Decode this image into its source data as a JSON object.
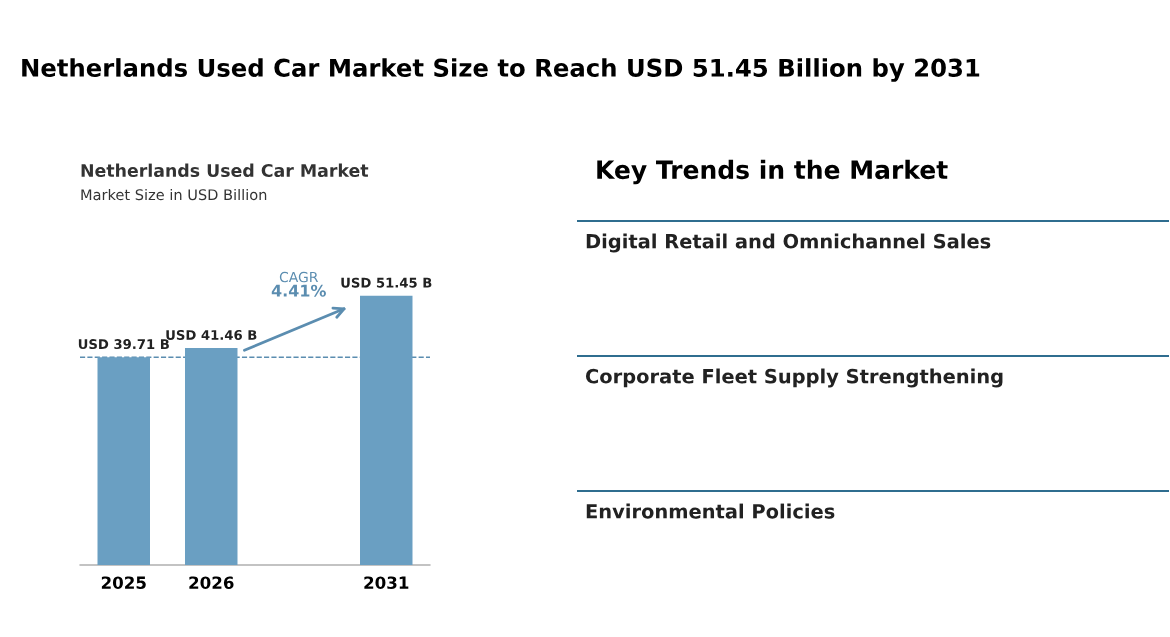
{
  "chart_data": [
    {
      "type": "bar",
      "title": "Netherlands Used Car Market Size to Reach USD 51.45 Billion by 2031",
      "subtitle": "Netherlands Used Car Market",
      "annotations": [
        "Market Size in USD Billion",
        "CAGR",
        "4.41%"
      ],
      "categories": [
        "2025",
        "2026",
        null,
        "2031"
      ],
      "values": [
        39.71,
        41.46,
        null,
        51.45
      ],
      "value_labels": [
        "USD 39.71 B",
        "USD 41.46 B",
        null,
        "USD 51.45 B"
      ],
      "color": "#6a9fc2",
      "tick_labels": "x",
      "grid": false,
      "ref_lines": [
        {
          "axis": "y",
          "value": 39.71,
          "color": "#5b8db0",
          "line_style": "dashed"
        }
      ]
    },
    {
      "type": "other",
      "title": "Key Trends in the Market",
      "annotations": [
        "Digital Retail and Omnichannel Sales",
        "Corporate Fleet Supply Strengthening",
        "Environmental Policies"
      ]
    }
  ]
}
